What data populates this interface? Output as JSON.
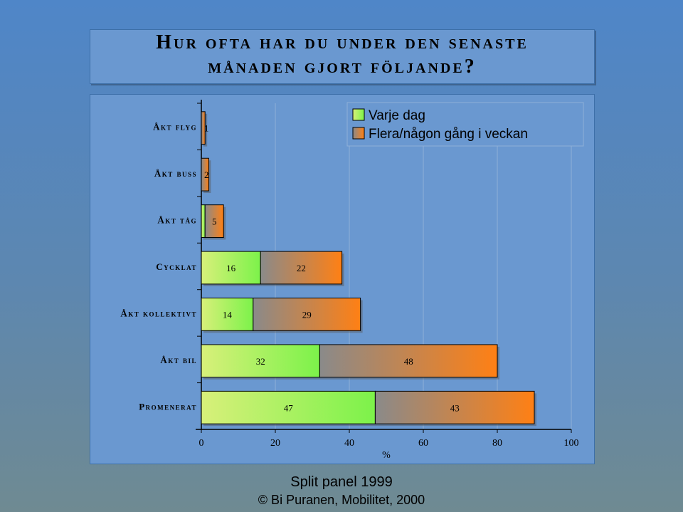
{
  "title_line1": "Hur ofta har du under den senaste",
  "title_line2": "månaden gjort följande?",
  "footer_line1": "Split panel 1999",
  "footer_line2": "© Bi Puranen, Mobilitet, 2000",
  "colors": {
    "daily_start": "#d8f07a",
    "daily_end": "#7cf24a",
    "weekly_start": "#8a8a8a",
    "weekly_end": "#ff8014"
  },
  "chart_data": {
    "type": "bar",
    "orientation": "horizontal",
    "stacked": true,
    "categories": [
      "Åkt flyg",
      "Åkt buss",
      "Åkt tåg",
      "Cycklat",
      "Åkt kollektivt",
      "Åkt bil",
      "Promenerat"
    ],
    "series": [
      {
        "name": "Varje dag",
        "values": [
          0,
          0,
          1,
          16,
          14,
          32,
          47
        ],
        "labels": [
          "",
          "",
          "1",
          "16",
          "14",
          "32",
          "47"
        ]
      },
      {
        "name": "Flera/någon gång i veckan",
        "values": [
          1,
          2,
          5,
          22,
          29,
          48,
          43
        ],
        "labels": [
          "1",
          "2",
          "5",
          "22",
          "29",
          "48",
          "43"
        ]
      }
    ],
    "xlabel": "%",
    "xlim": [
      0,
      100
    ],
    "xticks": [
      "0",
      "20",
      "40",
      "60",
      "80",
      "100"
    ],
    "grid": "vertical",
    "legend": "top-right"
  }
}
